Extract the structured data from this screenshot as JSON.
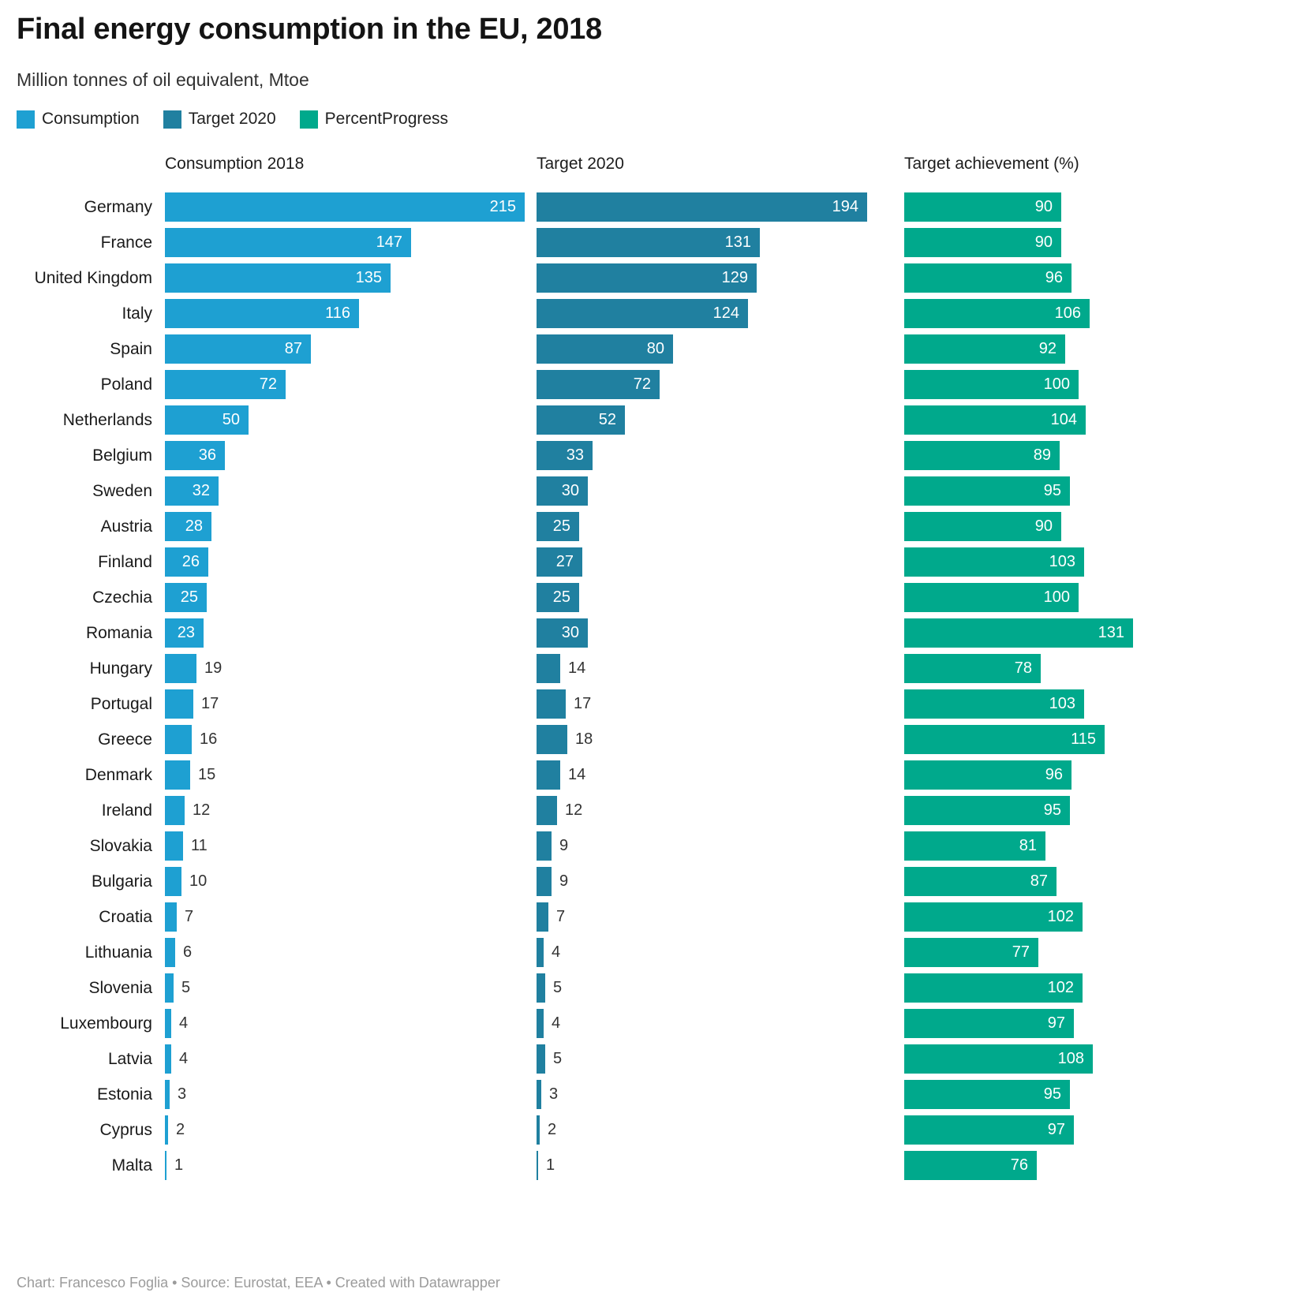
{
  "title": "Final energy consumption in the EU, 2018",
  "subtitle": "Million tonnes of oil equivalent, Mtoe",
  "legend": [
    {
      "label": "Consumption",
      "color": "#1EA0D2"
    },
    {
      "label": "Target 2020",
      "color": "#2080A0"
    },
    {
      "label": "PercentProgress",
      "color": "#00A98C"
    }
  ],
  "columns": [
    "Consumption 2018",
    "Target 2020",
    "Target achievement (%)"
  ],
  "footer": "Chart: Francesco Foglia • Source: Eurostat, EEA • Created with Datawrapper",
  "colors": {
    "consumption": "#1EA0D2",
    "target": "#2080A0",
    "progress": "#00A98C",
    "inside_label": "#ffffff",
    "outside_label": "#333333"
  },
  "chart_data": {
    "type": "bar",
    "orientation": "horizontal",
    "title": "Final energy consumption in the EU, 2018",
    "subtitle": "Million tonnes of oil equivalent, Mtoe",
    "column_headers": [
      "Consumption 2018",
      "Target 2020",
      "Target achievement (%)"
    ],
    "legend_position": "top",
    "grid": false,
    "categories": [
      "Germany",
      "France",
      "United Kingdom",
      "Italy",
      "Spain",
      "Poland",
      "Netherlands",
      "Belgium",
      "Sweden",
      "Austria",
      "Finland",
      "Czechia",
      "Romania",
      "Hungary",
      "Portugal",
      "Greece",
      "Denmark",
      "Ireland",
      "Slovakia",
      "Bulgaria",
      "Croatia",
      "Lithuania",
      "Slovenia",
      "Luxembourg",
      "Latvia",
      "Estonia",
      "Cyprus",
      "Malta"
    ],
    "series": [
      {
        "name": "Consumption",
        "color": "#1EA0D2",
        "values": [
          215,
          147,
          135,
          116,
          87,
          72,
          50,
          36,
          32,
          28,
          26,
          25,
          23,
          19,
          17,
          16,
          15,
          12,
          11,
          10,
          7,
          6,
          5,
          4,
          4,
          3,
          2,
          1
        ]
      },
      {
        "name": "Target 2020",
        "color": "#2080A0",
        "values": [
          194,
          131,
          129,
          124,
          80,
          72,
          52,
          33,
          30,
          25,
          27,
          25,
          30,
          14,
          17,
          18,
          14,
          12,
          9,
          9,
          7,
          4,
          5,
          4,
          5,
          3,
          2,
          1
        ]
      },
      {
        "name": "PercentProgress",
        "color": "#00A98C",
        "values": [
          90,
          90,
          96,
          106,
          92,
          100,
          104,
          89,
          95,
          90,
          103,
          100,
          131,
          78,
          103,
          115,
          96,
          95,
          81,
          87,
          102,
          77,
          102,
          97,
          108,
          95,
          97,
          76
        ]
      }
    ],
    "value_labels": "at_bar_end",
    "value_label_inside_min": 20
  }
}
